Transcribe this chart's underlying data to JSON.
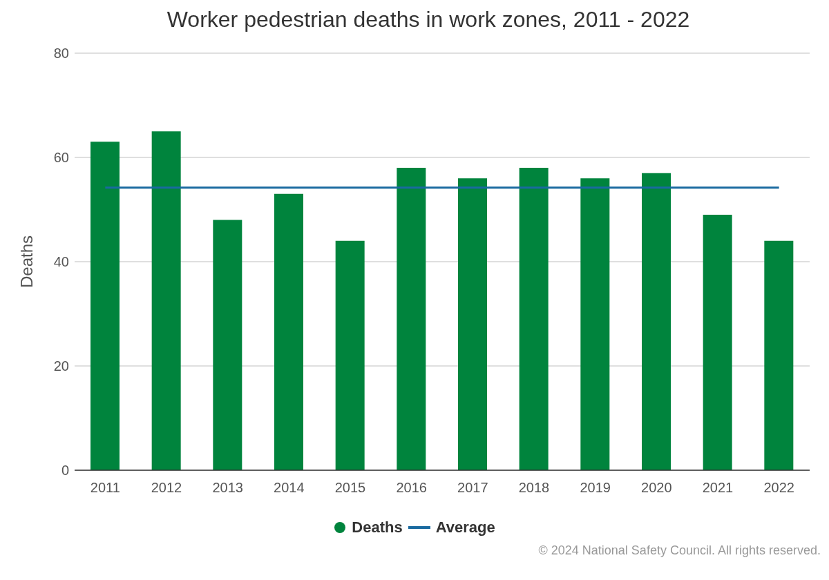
{
  "chart_data": {
    "type": "bar",
    "title": "Worker pedestrian deaths in work zones, 2011 - 2022",
    "ylabel": "Deaths",
    "categories": [
      "2011",
      "2012",
      "2013",
      "2014",
      "2015",
      "2016",
      "2017",
      "2018",
      "2019",
      "2020",
      "2021",
      "2022"
    ],
    "series": [
      {
        "name": "Deaths",
        "color": "#00843d",
        "values": [
          63,
          65,
          48,
          53,
          44,
          58,
          56,
          58,
          56,
          57,
          49,
          44
        ]
      },
      {
        "name": "Average",
        "type": "line",
        "color": "#1a6aa0",
        "values": [
          54.2,
          54.2,
          54.2,
          54.2,
          54.2,
          54.2,
          54.2,
          54.2,
          54.2,
          54.2,
          54.2,
          54.2
        ]
      }
    ],
    "ylim": [
      0,
      80
    ],
    "yticks": [
      0,
      20,
      40,
      60,
      80
    ],
    "grid": "y",
    "legend": "bottom",
    "annotations": [
      "© 2024 National Safety Council. All rights reserved."
    ]
  }
}
